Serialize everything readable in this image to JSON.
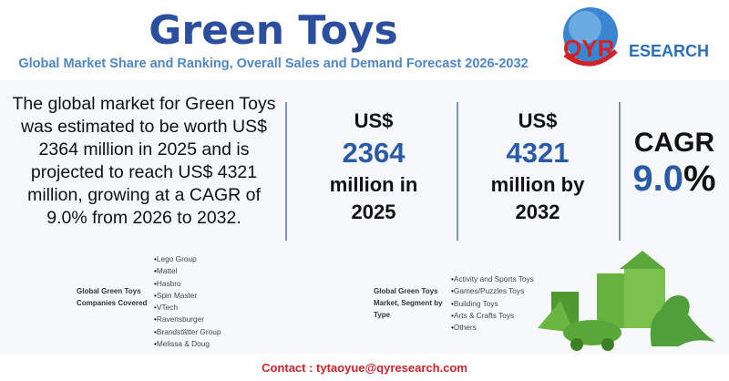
{
  "header": {
    "title": "Green Toys",
    "subtitle": "Global Market Share and Ranking, Overall Sales and Demand Forecast 2026-2032",
    "logo_text": "QYRESEARCH"
  },
  "description": "The global market for Green Toys was estimated to be worth US$ 2364 million in 2025 and is projected to reach US$ 4321 million, growing at a CAGR of 9.0% from 2026 to 2032.",
  "stats": [
    {
      "prefix": "US$",
      "value": "2364",
      "suffix": "million in",
      "year": "2025"
    },
    {
      "prefix": "US$",
      "value": "4321",
      "suffix": "million by",
      "year": "2032"
    }
  ],
  "cagr": {
    "label": "CAGR",
    "value": "9.0",
    "unit": "%"
  },
  "companies": {
    "label_line1": "Global Green Toys",
    "label_line2": "Companies Covered",
    "items": [
      "Lego Group",
      "Mattel",
      "Hasbro",
      "Spin Master",
      "VTech",
      "Ravensburger",
      "Brandstätter Group",
      "Melissa & Doug"
    ]
  },
  "segments": {
    "label_line1": "Global Green Toys",
    "label_line2": "Market, Segment by",
    "label_line3": "Type",
    "items": [
      "Activity and Sports Toys",
      "Games/Puzzles Toys",
      "Building Toys",
      "Arts & Crafts Toys",
      "Others"
    ]
  },
  "contact": "Contact : tytaoyue@qyresearch.com",
  "colors": {
    "title": "#2b4f9e",
    "accent": "#2b5aa8",
    "contact": "#d0242b",
    "toy_green": "#5aa83a"
  }
}
